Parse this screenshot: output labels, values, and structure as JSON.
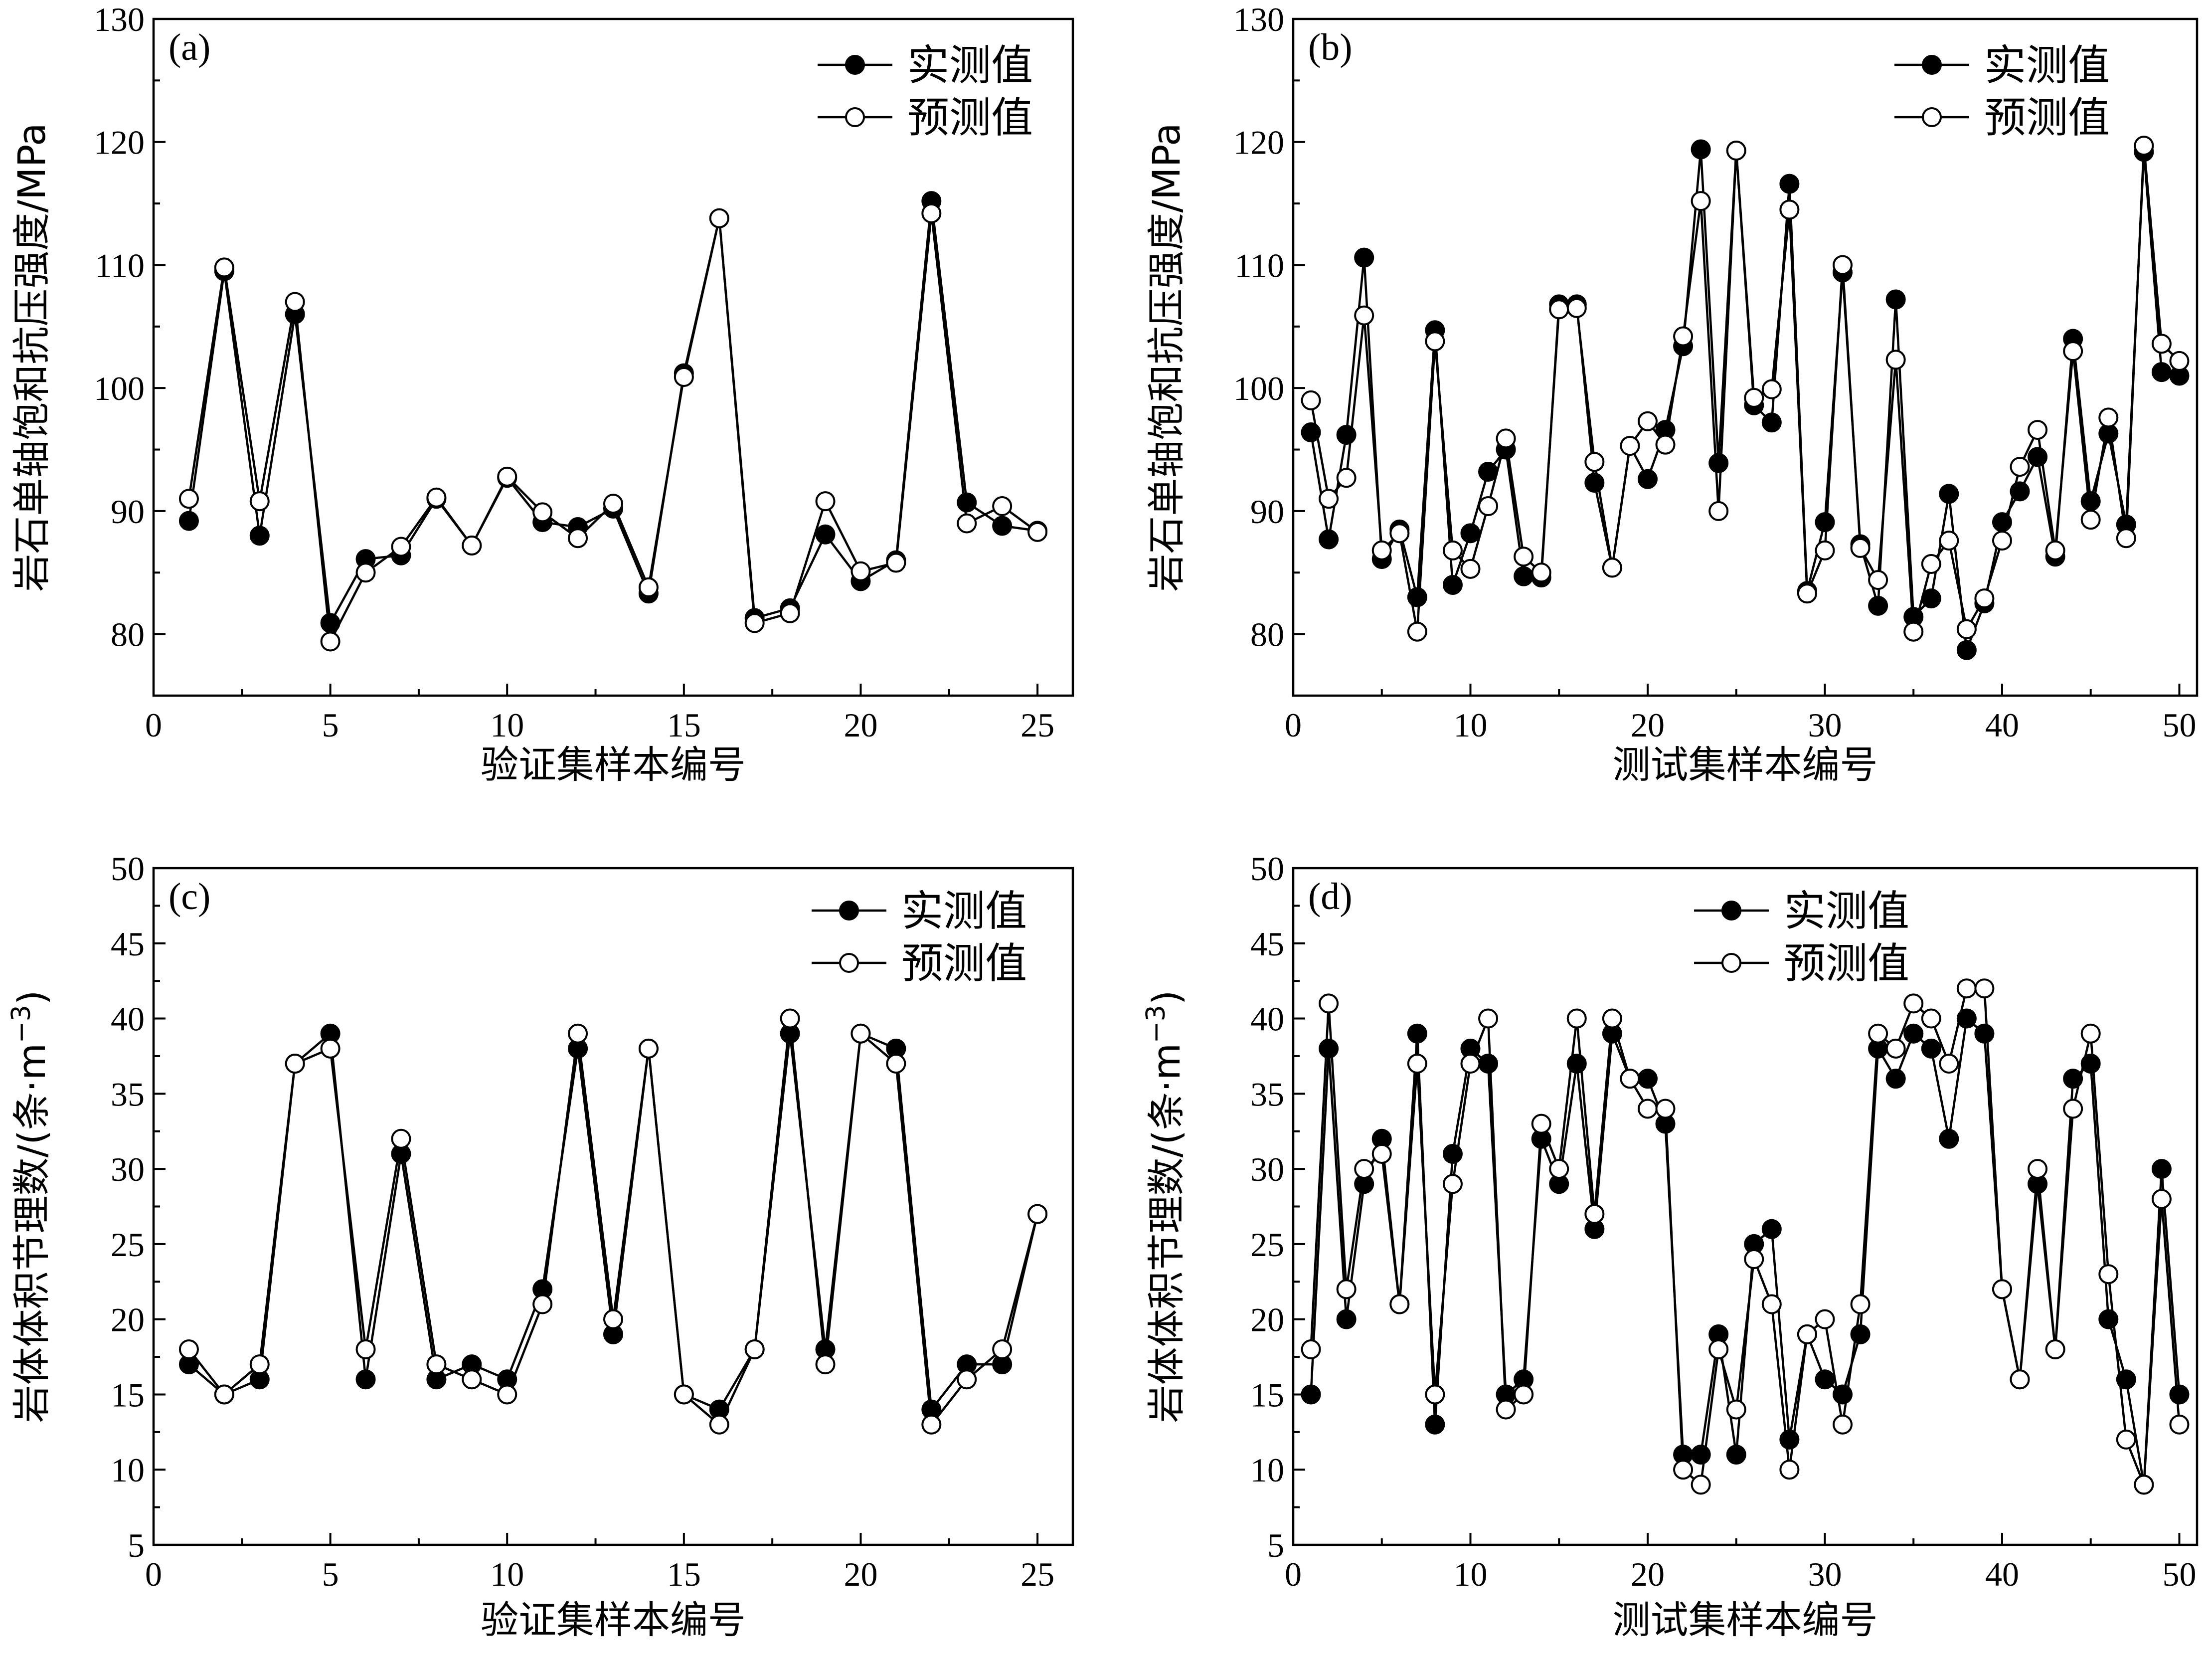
{
  "chart_data": [
    {
      "type": "line",
      "panel_label": "(a)",
      "xlabel": "验证集样本编号",
      "ylabel": "岩石单轴饱和抗压强度/MPa",
      "xlim": [
        0,
        26
      ],
      "ylim": [
        75,
        130
      ],
      "xticks": [
        0,
        5,
        10,
        15,
        20,
        25
      ],
      "yticks": [
        80,
        90,
        100,
        110,
        120,
        130
      ],
      "legend_position": "top-right",
      "x": [
        1,
        2,
        3,
        4,
        5,
        6,
        7,
        8,
        9,
        10,
        11,
        12,
        13,
        14,
        15,
        16,
        17,
        18,
        19,
        20,
        21,
        22,
        23,
        24,
        25
      ],
      "series": [
        {
          "name": "实测值",
          "marker": "filled",
          "values": [
            89.2,
            109.5,
            88.0,
            106.0,
            80.9,
            86.1,
            86.4,
            91.0,
            87.2,
            92.7,
            89.1,
            88.7,
            90.2,
            83.3,
            101.2,
            113.8,
            81.3,
            82.1,
            88.1,
            84.3,
            86.0,
            115.2,
            90.7,
            88.8,
            88.4
          ]
        },
        {
          "name": "预测值",
          "marker": "open",
          "values": [
            91.0,
            109.8,
            90.8,
            107.0,
            79.4,
            85.0,
            87.1,
            91.1,
            87.2,
            92.8,
            89.9,
            87.8,
            90.6,
            83.8,
            100.9,
            113.8,
            80.9,
            81.7,
            90.8,
            85.1,
            85.8,
            114.2,
            89.0,
            90.4,
            88.3
          ]
        }
      ]
    },
    {
      "type": "line",
      "panel_label": "(b)",
      "xlabel": "测试集样本编号",
      "ylabel": "岩石单轴饱和抗压强度/MPa",
      "xlim": [
        0,
        51
      ],
      "ylim": [
        75,
        130
      ],
      "xticks": [
        0,
        10,
        20,
        30,
        40,
        50
      ],
      "yticks": [
        80,
        90,
        100,
        110,
        120,
        130
      ],
      "legend_position": "top-right",
      "x": [
        1,
        2,
        3,
        4,
        5,
        6,
        7,
        8,
        9,
        10,
        11,
        12,
        13,
        14,
        15,
        16,
        17,
        18,
        19,
        20,
        21,
        22,
        23,
        24,
        25,
        26,
        27,
        28,
        29,
        30,
        31,
        32,
        33,
        34,
        35,
        36,
        37,
        38,
        39,
        40,
        41,
        42,
        43,
        44,
        45,
        46,
        47,
        48,
        49,
        50
      ],
      "series": [
        {
          "name": "实测值",
          "marker": "filled",
          "values": [
            96.4,
            87.7,
            96.2,
            110.6,
            86.1,
            88.5,
            83.0,
            104.7,
            84.0,
            88.2,
            93.2,
            95.0,
            84.7,
            84.6,
            106.8,
            106.8,
            92.3,
            85.4,
            95.3,
            92.6,
            96.6,
            103.4,
            119.4,
            93.9,
            119.3,
            98.6,
            97.2,
            116.6,
            83.5,
            89.1,
            109.4,
            87.3,
            82.3,
            107.2,
            81.4,
            82.9,
            91.4,
            78.7,
            82.5,
            89.1,
            91.6,
            94.4,
            86.3,
            104.0,
            90.8,
            96.3,
            88.9,
            119.2,
            101.3,
            101.0
          ]
        },
        {
          "name": "预测值",
          "marker": "open",
          "values": [
            99.0,
            91.0,
            92.7,
            105.9,
            86.8,
            88.2,
            80.2,
            103.8,
            86.8,
            85.3,
            90.4,
            95.9,
            86.3,
            85.0,
            106.4,
            106.5,
            94.0,
            85.4,
            95.3,
            97.3,
            95.4,
            104.2,
            115.2,
            90.0,
            119.3,
            99.2,
            99.9,
            114.5,
            83.3,
            86.8,
            110.0,
            87.0,
            84.4,
            102.3,
            80.2,
            85.7,
            87.6,
            80.4,
            82.9,
            87.6,
            93.6,
            96.6,
            86.8,
            103.0,
            89.3,
            97.6,
            87.8,
            119.7,
            103.6,
            102.2
          ]
        }
      ]
    },
    {
      "type": "line",
      "panel_label": "(c)",
      "xlabel": "验证集样本编号",
      "ylabel": "岩体体积节理数/(条·m",
      "ylabel_sup": "−3",
      "ylabel_suffix": ")",
      "xlim": [
        0,
        26
      ],
      "ylim": [
        5,
        50
      ],
      "xticks": [
        0,
        5,
        10,
        15,
        20,
        25
      ],
      "yticks": [
        5,
        10,
        15,
        20,
        25,
        30,
        35,
        40,
        45,
        50
      ],
      "legend_position": "top-right",
      "x": [
        1,
        2,
        3,
        4,
        5,
        6,
        7,
        8,
        9,
        10,
        11,
        12,
        13,
        14,
        15,
        16,
        17,
        18,
        19,
        20,
        21,
        22,
        23,
        24,
        25
      ],
      "series": [
        {
          "name": "实测值",
          "marker": "filled",
          "values": [
            17,
            15,
            16,
            37,
            39,
            16,
            31,
            16,
            17,
            16,
            22,
            38,
            19,
            38,
            15,
            14,
            18,
            39,
            18,
            39,
            38,
            14,
            17,
            17,
            27
          ]
        },
        {
          "name": "预测值",
          "marker": "open",
          "values": [
            18,
            15,
            17,
            37,
            38,
            18,
            32,
            17,
            16,
            15,
            21,
            39,
            20,
            38,
            15,
            13,
            18,
            40,
            17,
            39,
            37,
            13,
            16,
            18,
            27
          ]
        }
      ]
    },
    {
      "type": "line",
      "panel_label": "(d)",
      "xlabel": "测试集样本编号",
      "ylabel": "岩体体积节理数/(条·m",
      "ylabel_sup": "−3",
      "ylabel_suffix": ")",
      "xlim": [
        0,
        51
      ],
      "ylim": [
        5,
        50
      ],
      "xticks": [
        0,
        10,
        20,
        30,
        40,
        50
      ],
      "yticks": [
        5,
        10,
        15,
        20,
        25,
        30,
        35,
        40,
        45,
        50
      ],
      "legend_position": "top-left-center",
      "x": [
        1,
        2,
        3,
        4,
        5,
        6,
        7,
        8,
        9,
        10,
        11,
        12,
        13,
        14,
        15,
        16,
        17,
        18,
        19,
        20,
        21,
        22,
        23,
        24,
        25,
        26,
        27,
        28,
        29,
        30,
        31,
        32,
        33,
        34,
        35,
        36,
        37,
        38,
        39,
        40,
        41,
        42,
        43,
        44,
        45,
        46,
        47,
        48,
        49,
        50
      ],
      "series": [
        {
          "name": "实测值",
          "marker": "filled",
          "values": [
            15,
            38,
            20,
            29,
            32,
            21,
            39,
            13,
            31,
            38,
            37,
            15,
            16,
            32,
            29,
            37,
            26,
            39,
            36,
            36,
            33,
            11,
            11,
            19,
            11,
            25,
            26,
            12,
            19,
            16,
            15,
            19,
            38,
            36,
            39,
            38,
            32,
            40,
            39,
            22,
            16,
            29,
            18,
            36,
            37,
            20,
            16,
            9,
            30,
            15
          ]
        },
        {
          "name": "预测值",
          "marker": "open",
          "values": [
            18,
            41,
            22,
            30,
            31,
            21,
            37,
            15,
            29,
            37,
            40,
            14,
            15,
            33,
            30,
            40,
            27,
            40,
            36,
            34,
            34,
            10,
            9,
            18,
            14,
            24,
            21,
            10,
            19,
            20,
            13,
            21,
            39,
            38,
            41,
            40,
            37,
            42,
            42,
            22,
            16,
            30,
            18,
            34,
            39,
            23,
            12,
            9,
            28,
            13
          ]
        }
      ]
    }
  ]
}
